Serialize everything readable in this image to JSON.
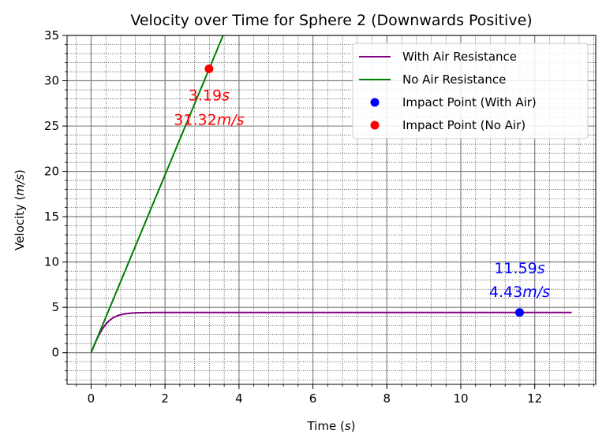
{
  "chart_data": {
    "type": "line",
    "title": "Velocity over Time for Sphere 2 (Downwards Positive)",
    "xlabel": {
      "text": "Time (",
      "unit": "s",
      "close": ")"
    },
    "ylabel": {
      "text": "Velocity (",
      "unit": "m/s",
      "close": ")"
    },
    "xlim": [
      -0.65,
      13.65
    ],
    "ylim": [
      -3.5,
      35
    ],
    "xticks": [
      0,
      2,
      4,
      6,
      8,
      10,
      12
    ],
    "yticks": [
      0,
      5,
      10,
      15,
      20,
      25,
      30,
      35
    ],
    "grid": "major and minor",
    "legend_position": "top-right",
    "series": [
      {
        "name": "With Air Resistance",
        "kind": "line",
        "color": "#800080",
        "terminal_velocity": 4.43,
        "x_range": [
          0,
          13
        ],
        "shape": "v = vt·tanh(g·t / vt)"
      },
      {
        "name": "No Air Resistance",
        "kind": "line",
        "color": "#008000",
        "slope": 9.81,
        "x": [
          0,
          3.6
        ],
        "y": [
          0,
          35.3
        ]
      },
      {
        "name": "Impact Point (With Air)",
        "kind": "point",
        "color": "#0000ff",
        "x": 11.59,
        "y": 4.43
      },
      {
        "name": "Impact Point (No Air)",
        "kind": "point",
        "color": "#ff0000",
        "x": 3.19,
        "y": 31.32
      }
    ],
    "annotations": [
      {
        "series": "Impact Point (With Air)",
        "num1": "11.59",
        "unit1": "s",
        "num2": "4.43",
        "unit2": "m/s",
        "color": "#0000ff"
      },
      {
        "series": "Impact Point (No Air)",
        "num1": "3.19",
        "unit1": "s",
        "num2": "31.32",
        "unit2": "m/s",
        "color": "#ff0000"
      }
    ]
  }
}
